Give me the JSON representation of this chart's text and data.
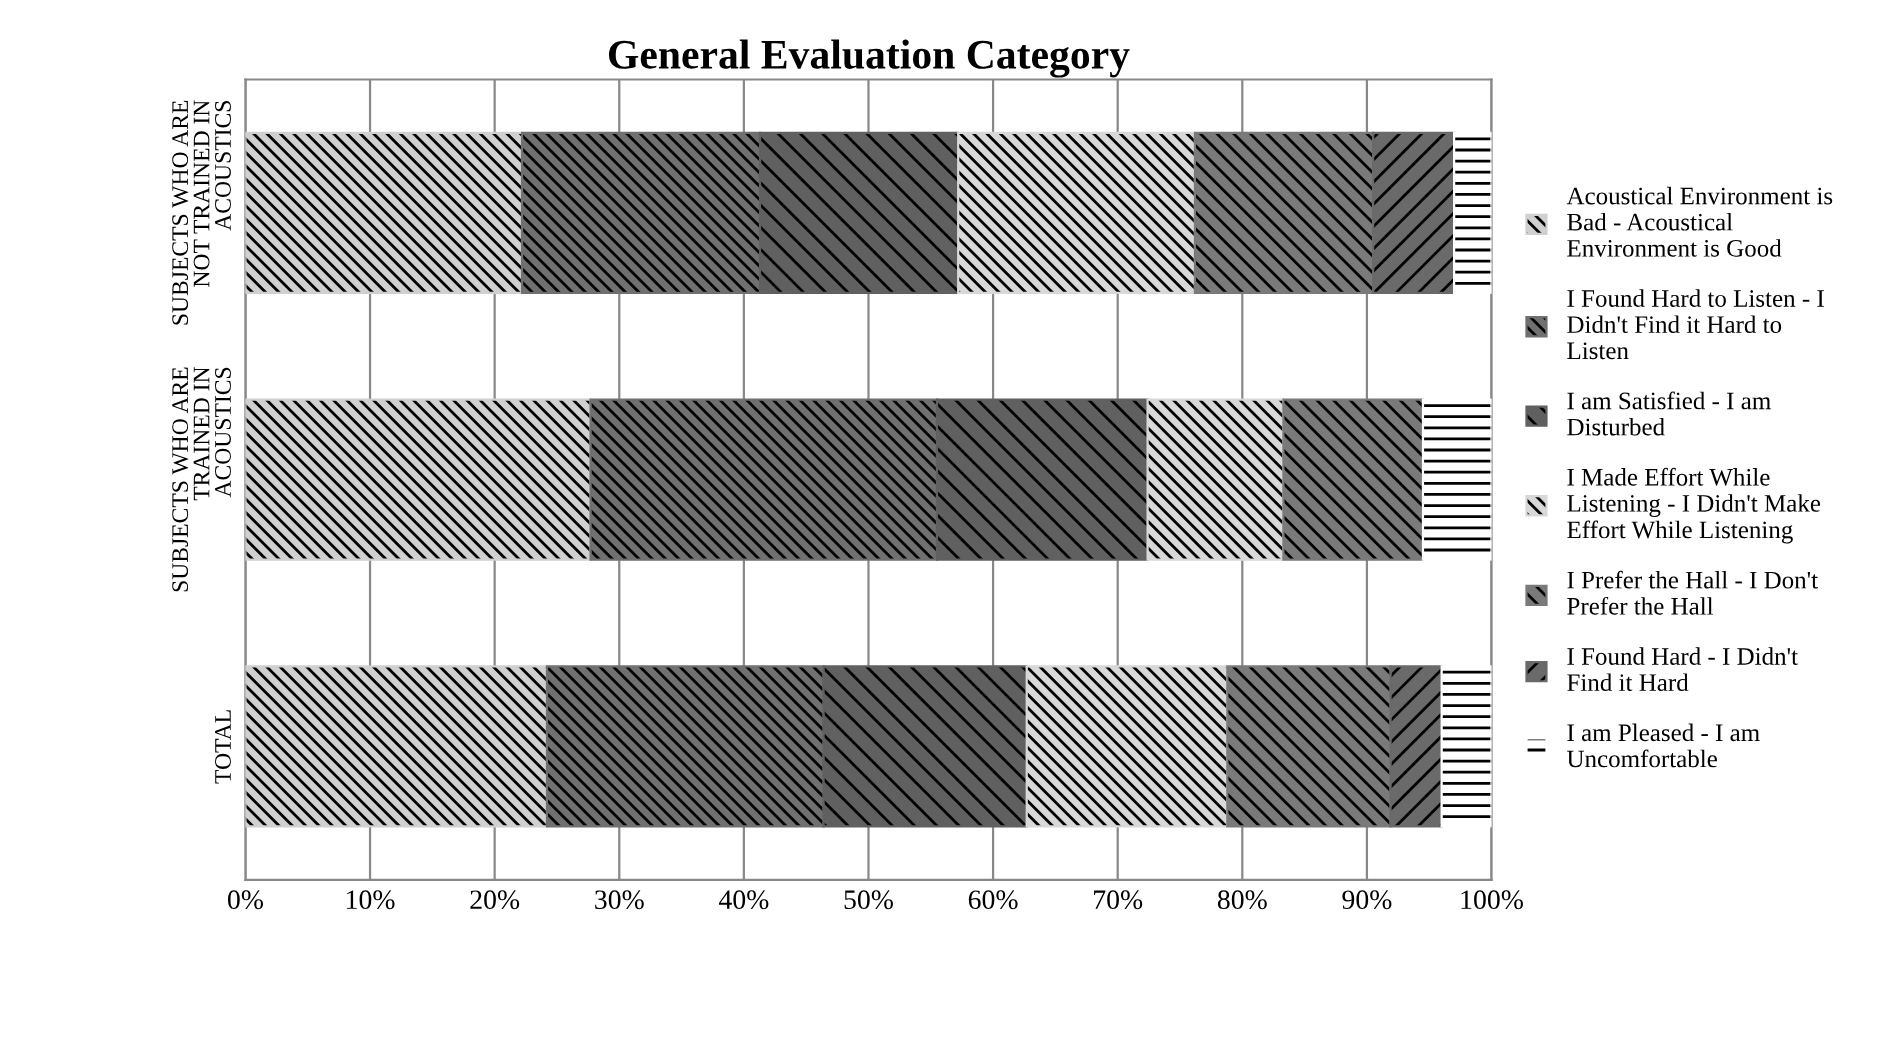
{
  "chart_data": {
    "type": "bar",
    "orientation": "horizontal",
    "stacked": true,
    "title": "General Evaluation Category",
    "categories": [
      "SUBJECTS WHO ARE\nNOT TRAINED IN\nACOUSTICS",
      "SUBJECTS WHO ARE\nTRAINED IN\nACOUSTICS",
      "TOTAL"
    ],
    "series": [
      {
        "name": "Acoustical Environment is\nBad - Acoustical\nEnvironment is Good",
        "color": "#d0d0d0",
        "values": [
          22.2,
          27.7,
          24.2
        ]
      },
      {
        "name": "I Found Hard to Listen - I\nDidn't Find it Hard to\nListen",
        "color": "#707070",
        "values": [
          19.1,
          27.8,
          22.2
        ]
      },
      {
        "name": "I am Satisfied - I am\nDisturbed",
        "color": "#606060",
        "values": [
          15.9,
          16.9,
          16.3
        ]
      },
      {
        "name": "I Made Effort While\nListening - I Didn't Make\nEffort While Listening",
        "color": "#d8d8d8",
        "values": [
          19.0,
          10.9,
          16.1
        ]
      },
      {
        "name": "I Prefer the Hall - I Don't\nPrefer the Hall",
        "color": "#7a7a7a",
        "values": [
          14.3,
          11.2,
          13.1
        ]
      },
      {
        "name": "I Found Hard - I Didn't\nFind it Hard",
        "color": "#6a6a6a",
        "values": [
          6.5,
          0,
          4.1
        ]
      },
      {
        "name": "I am Pleased - I am\nUncomfortable",
        "color": "#ffffff",
        "values": [
          3.0,
          5.5,
          4.0
        ]
      }
    ],
    "xlim": [
      0,
      100
    ],
    "xticks": [
      {
        "value": 0,
        "label": "0%"
      },
      {
        "value": 10,
        "label": "10%"
      },
      {
        "value": 20,
        "label": "20%"
      },
      {
        "value": 30,
        "label": "30%"
      },
      {
        "value": 40,
        "label": "40%"
      },
      {
        "value": 50,
        "label": "50%"
      },
      {
        "value": 60,
        "label": "60%"
      },
      {
        "value": 70,
        "label": "70%"
      },
      {
        "value": 80,
        "label": "80%"
      },
      {
        "value": 90,
        "label": "90%"
      },
      {
        "value": 100,
        "label": "100%"
      }
    ],
    "grid": "x",
    "legend": "right"
  }
}
